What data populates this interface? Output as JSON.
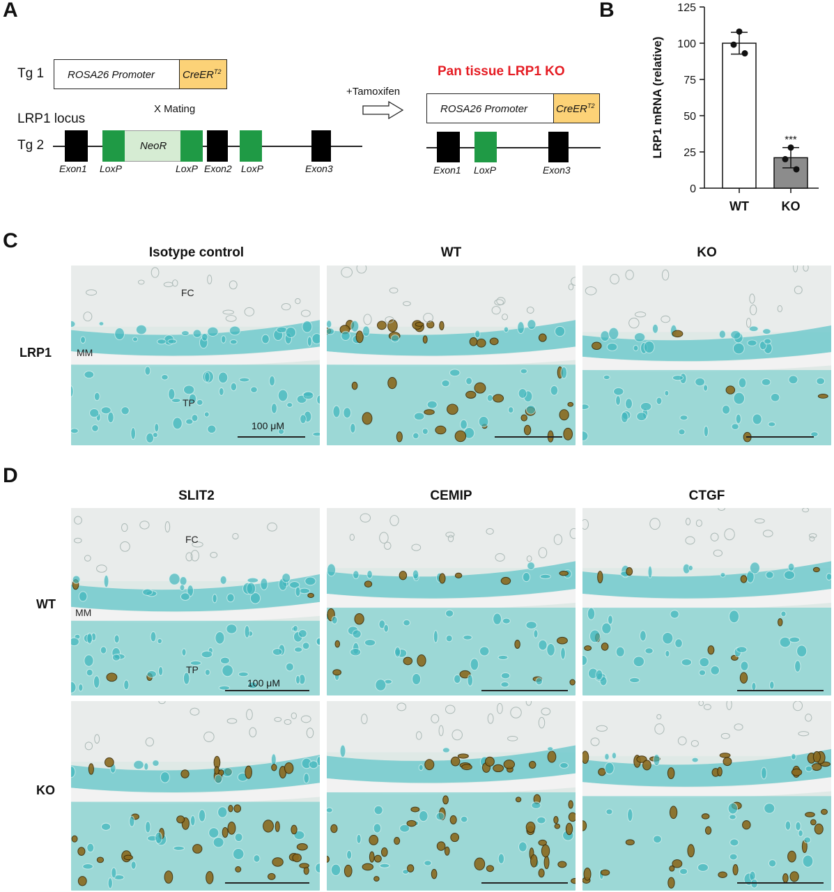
{
  "panels": {
    "A": "A",
    "B": "B",
    "C": "C",
    "D": "D"
  },
  "schematic": {
    "tg1": "Tg 1",
    "tg1_promoter": "ROSA26 Promoter",
    "cre_main": "CreER",
    "cre_sup": "T2",
    "mating": "X Mating",
    "lrp1_locus": "LRP1 locus",
    "tg2": "Tg 2",
    "neor": "NeoR",
    "exon1": "Exon1",
    "loxp1": "LoxP",
    "loxp2": "LoxP",
    "exon2": "Exon2",
    "loxp3": "LoxP",
    "exon3": "Exon3",
    "tamoxifen": "+Tamoxifen",
    "ko_title": "Pan tissue LRP1 KO",
    "ko_promoter": "ROSA26 Promoter",
    "ko_exon1": "Exon1",
    "ko_loxp": "LoxP",
    "ko_exon3": "Exon3",
    "colors": {
      "black_exon": "#000000",
      "loxp": "#1f9a45",
      "neor": "#d6ecd3",
      "cre": "#fcd277",
      "ko_title": "#e51c23"
    }
  },
  "chart_data": {
    "type": "bar",
    "categories": [
      "WT",
      "KO"
    ],
    "values": [
      100,
      21
    ],
    "error": [
      7.5,
      7
    ],
    "points": [
      [
        108,
        99,
        93
      ],
      [
        28,
        20,
        13
      ]
    ],
    "ylabel": "LRP1 mRNA (relative)",
    "ylim": [
      0,
      125
    ],
    "yticks": [
      0,
      25,
      50,
      75,
      100,
      125
    ],
    "annotation": "***",
    "bar_colors": [
      "#ffffff",
      "#8c8c8c"
    ]
  },
  "panel_c": {
    "columns": [
      "Isotype control",
      "WT",
      "KO"
    ],
    "row": "LRP1",
    "fc": "FC",
    "mm": "MM",
    "tp": "TP",
    "scale": "100 μM"
  },
  "panel_d": {
    "columns": [
      "SLIT2",
      "CEMIP",
      "CTGF"
    ],
    "rows": [
      "WT",
      "KO"
    ],
    "fc": "FC",
    "mm": "MM",
    "tp": "TP",
    "scale": "100 μM"
  }
}
